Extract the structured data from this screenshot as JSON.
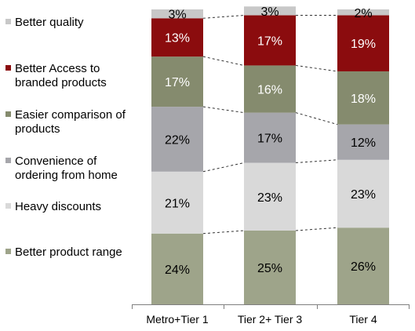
{
  "chart_data": {
    "type": "bar",
    "stacked": true,
    "percent": true,
    "categories": [
      "Metro+Tier 1",
      "Tier 2+ Tier 3",
      "Tier 4"
    ],
    "series": [
      {
        "name": "Better product range",
        "values": [
          24,
          25,
          26
        ],
        "color": "#9EA48A",
        "label_color": "#000000"
      },
      {
        "name": "Heavy discounts",
        "values": [
          21,
          23,
          23
        ],
        "color": "#D9D9D9",
        "label_color": "#000000"
      },
      {
        "name": "Convenience of ordering from home",
        "values": [
          22,
          17,
          12
        ],
        "color": "#A6A6AB",
        "label_color": "#000000"
      },
      {
        "name": "Easier comparison of products",
        "values": [
          17,
          16,
          18
        ],
        "color": "#858B6E",
        "label_color": "#ffffff"
      },
      {
        "name": "Better Access to branded products",
        "values": [
          13,
          17,
          19
        ],
        "color": "#8B0C0E",
        "label_color": "#ffffff"
      },
      {
        "name": "Better quality",
        "values": [
          3,
          3,
          2
        ],
        "color": "#C8C8C8",
        "label_color": "#000000"
      }
    ],
    "legend": {
      "placement": "left",
      "entries": [
        {
          "lines": [
            "Better quality"
          ],
          "color": "#C8C8C8"
        },
        {
          "lines": [
            "Better Access to",
            "branded products"
          ],
          "color": "#8B0C0E"
        },
        {
          "lines": [
            "Easier comparison of",
            "products"
          ],
          "color": "#858B6E"
        },
        {
          "lines": [
            "Convenience of",
            "ordering from home"
          ],
          "color": "#A6A6AB"
        },
        {
          "lines": [
            "Heavy discounts"
          ],
          "color": "#D9D9D9"
        },
        {
          "lines": [
            "Better product range"
          ],
          "color": "#9EA48A"
        }
      ]
    },
    "ylim": [
      0,
      100
    ],
    "series_lines": "dashed"
  }
}
